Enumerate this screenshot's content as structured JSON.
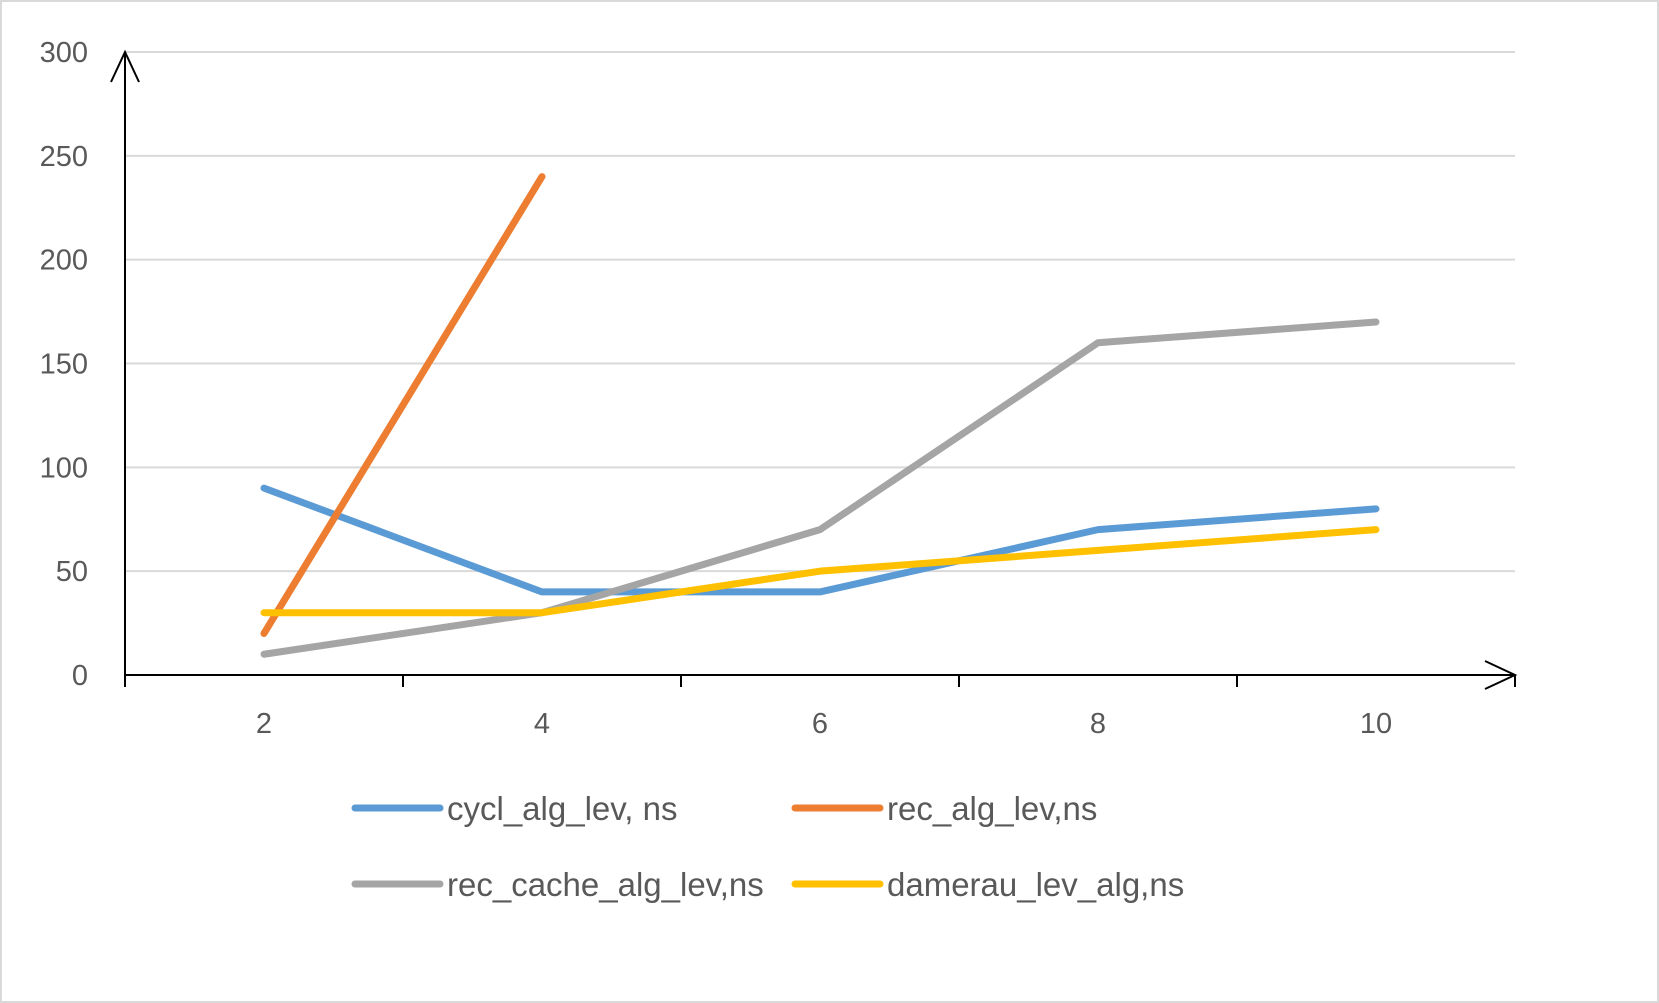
{
  "chart_data": {
    "type": "line",
    "x": [
      2,
      4,
      6,
      8,
      10
    ],
    "xlim": [
      1,
      11
    ],
    "ylim": [
      0,
      300
    ],
    "x_ticks": [
      2,
      4,
      6,
      8,
      10
    ],
    "y_ticks": [
      0,
      50,
      100,
      150,
      200,
      250,
      300
    ],
    "grid": true,
    "legend_position": "bottom",
    "series": [
      {
        "name": "cycl_alg_lev, ns",
        "color": "#5b9bd5",
        "values": [
          90,
          40,
          40,
          70,
          80
        ]
      },
      {
        "name": "rec_alg_lev,ns",
        "color": "#ed7d31",
        "values": [
          20,
          240,
          null,
          null,
          null
        ]
      },
      {
        "name": "rec_cache_alg_lev,ns",
        "color": "#a5a5a5",
        "values": [
          10,
          30,
          70,
          160,
          170
        ]
      },
      {
        "name": "damerau_lev_alg,ns",
        "color": "#ffc000",
        "values": [
          30,
          30,
          50,
          60,
          70
        ]
      }
    ]
  }
}
